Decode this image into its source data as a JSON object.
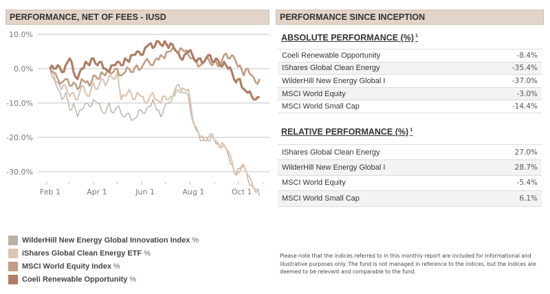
{
  "left_panel": {
    "title": "PERFORMANCE, NET OF FEES - IUSD"
  },
  "right_panel": {
    "title": "PERFORMANCE SINCE INCEPTION",
    "absolute": {
      "title": "ABSOLUTE PERFORMANCE (%)",
      "footnote_mark": "1",
      "rows": [
        {
          "name": "Coeli Renewable Opportunity",
          "value": "-8.4%"
        },
        {
          "name": "IShares Global Clean Energy",
          "value": "-35.4%"
        },
        {
          "name": "WilderHill New Energy Global I",
          "value": "-37.0%"
        },
        {
          "name": "MSCI World Equity",
          "value": "-3.0%"
        },
        {
          "name": "MSCI World Small Cap",
          "value": "-14.4%"
        }
      ]
    },
    "relative": {
      "title": "RELATIVE PERFORMANCE (%)",
      "footnote_mark": "1",
      "rows": [
        {
          "name": "IShares Global Clean Energy",
          "value": "27.0%"
        },
        {
          "name": "WilderHill New Energy Global I",
          "value": "28.7%"
        },
        {
          "name": "MSCI World Equity",
          "value": "-5.4%"
        },
        {
          "name": "MSCI World Small Cap",
          "value": "6.1%"
        }
      ]
    },
    "disclaimer": "Please note that the indices referred to in this monthly report are included for informational and illustrative purposes only. The fund is not managed in reference to the indices, but the indices are deemed to be relevant and comparable to the fund."
  },
  "chart_data": {
    "type": "line",
    "title": "PERFORMANCE, NET OF FEES - IUSD",
    "xlabel": "",
    "ylabel": "",
    "ylim": [
      -38,
      10.5
    ],
    "yticks": [
      10,
      0,
      -10,
      -20,
      -30
    ],
    "ytick_labels": [
      "10.0%",
      "0.0%",
      "-10.0%",
      "-20.0%",
      "-30.0%"
    ],
    "x_range_days": [
      -5,
      290
    ],
    "xticks_major": [
      {
        "day": 0,
        "label": "Feb 1"
      },
      {
        "day": 59,
        "label": "Apr 1"
      },
      {
        "day": 120,
        "label": "Jun 1"
      },
      {
        "day": 181,
        "label": "Aug 1"
      },
      {
        "day": 242,
        "label": "Oct 1"
      }
    ],
    "xticks_minor_days": [
      28,
      89,
      150,
      212,
      273
    ],
    "x_unit": "days since Feb 1",
    "grid": true,
    "legend_position": "bottom-left",
    "x": [
      4,
      9,
      14,
      19,
      24,
      29,
      34,
      39,
      44,
      49,
      54,
      59,
      64,
      69,
      74,
      79,
      84,
      89,
      94,
      99,
      104,
      109,
      114,
      119,
      124,
      129,
      134,
      139,
      144,
      149,
      154,
      159,
      164,
      169,
      174,
      179,
      184,
      189,
      194,
      199,
      204,
      209,
      214,
      219,
      224,
      229,
      234,
      239,
      244,
      249,
      254,
      259,
      264,
      269
    ],
    "series": [
      {
        "name": "WilderHill New Energy Global Innovation Index",
        "suffix": "%",
        "color": "#bab1a8",
        "values": [
          0,
          -3,
          -6,
          -9,
          -7,
          -12,
          -10,
          -14,
          -12,
          -10,
          -11,
          -9,
          -10,
          -12,
          -13,
          -10,
          -13,
          -11,
          -13,
          -14,
          -13,
          -15,
          -14,
          -12,
          -13,
          -11,
          -9,
          -12,
          -14,
          -11,
          -10,
          -8,
          -5,
          -6,
          -7,
          -8,
          -15,
          -18,
          -21,
          -20,
          -21,
          -19,
          -22,
          -23,
          -22,
          -25,
          -28,
          -31,
          -29,
          -28,
          -32,
          -34,
          -36,
          -37
        ]
      },
      {
        "name": "iShares Global Clean Energy ETF",
        "suffix": "%",
        "color": "#dcc5b4",
        "values": [
          0,
          -2,
          -4,
          -6,
          -5,
          -8,
          -7,
          -9,
          -5,
          -7,
          -8,
          -4,
          -6,
          -3,
          -5,
          -2,
          -3,
          -1,
          -9,
          -8,
          -6,
          -9,
          -7,
          -8,
          -10,
          -9,
          -7,
          -9,
          -10,
          -8,
          -9,
          -8,
          -6,
          -7,
          -6,
          -6,
          -14,
          -17,
          -20,
          -21,
          -20,
          -19,
          -21,
          -23,
          -22,
          -24,
          -27,
          -31,
          -30,
          -28,
          -31,
          -33,
          -35,
          -35.4
        ]
      },
      {
        "name": "MSCI World Equity Index",
        "suffix": "%",
        "color": "#c29c84",
        "values": [
          0,
          -1,
          -3,
          -4,
          -3,
          -5,
          -4,
          -6,
          -3,
          -4,
          -5,
          -2,
          -3,
          -1,
          -2,
          -1,
          -1,
          0,
          -2,
          -1,
          0,
          -1,
          1,
          0,
          2,
          2,
          1,
          3,
          4,
          3,
          5,
          6,
          5,
          6,
          5,
          4,
          3,
          2,
          1,
          2,
          3,
          1,
          2,
          1,
          4,
          3,
          4,
          2,
          1,
          -2,
          0,
          -2,
          -4,
          -3
        ]
      },
      {
        "name": "Coeli Renewable Opportunity",
        "suffix": "%",
        "color": "#ad7e64",
        "values": [
          0,
          0,
          1,
          -1,
          1,
          3,
          -1,
          -3,
          0,
          2,
          1,
          3,
          1,
          2,
          0,
          -1,
          1,
          2,
          1,
          3,
          2,
          4,
          5,
          4,
          6,
          7,
          6,
          8,
          7,
          8,
          6,
          7,
          5,
          3,
          4,
          5,
          4,
          2,
          3,
          2,
          4,
          2,
          3,
          1,
          2,
          0,
          -1,
          -4,
          -3,
          -6,
          -7,
          -8,
          -9,
          -8.4
        ]
      }
    ]
  }
}
